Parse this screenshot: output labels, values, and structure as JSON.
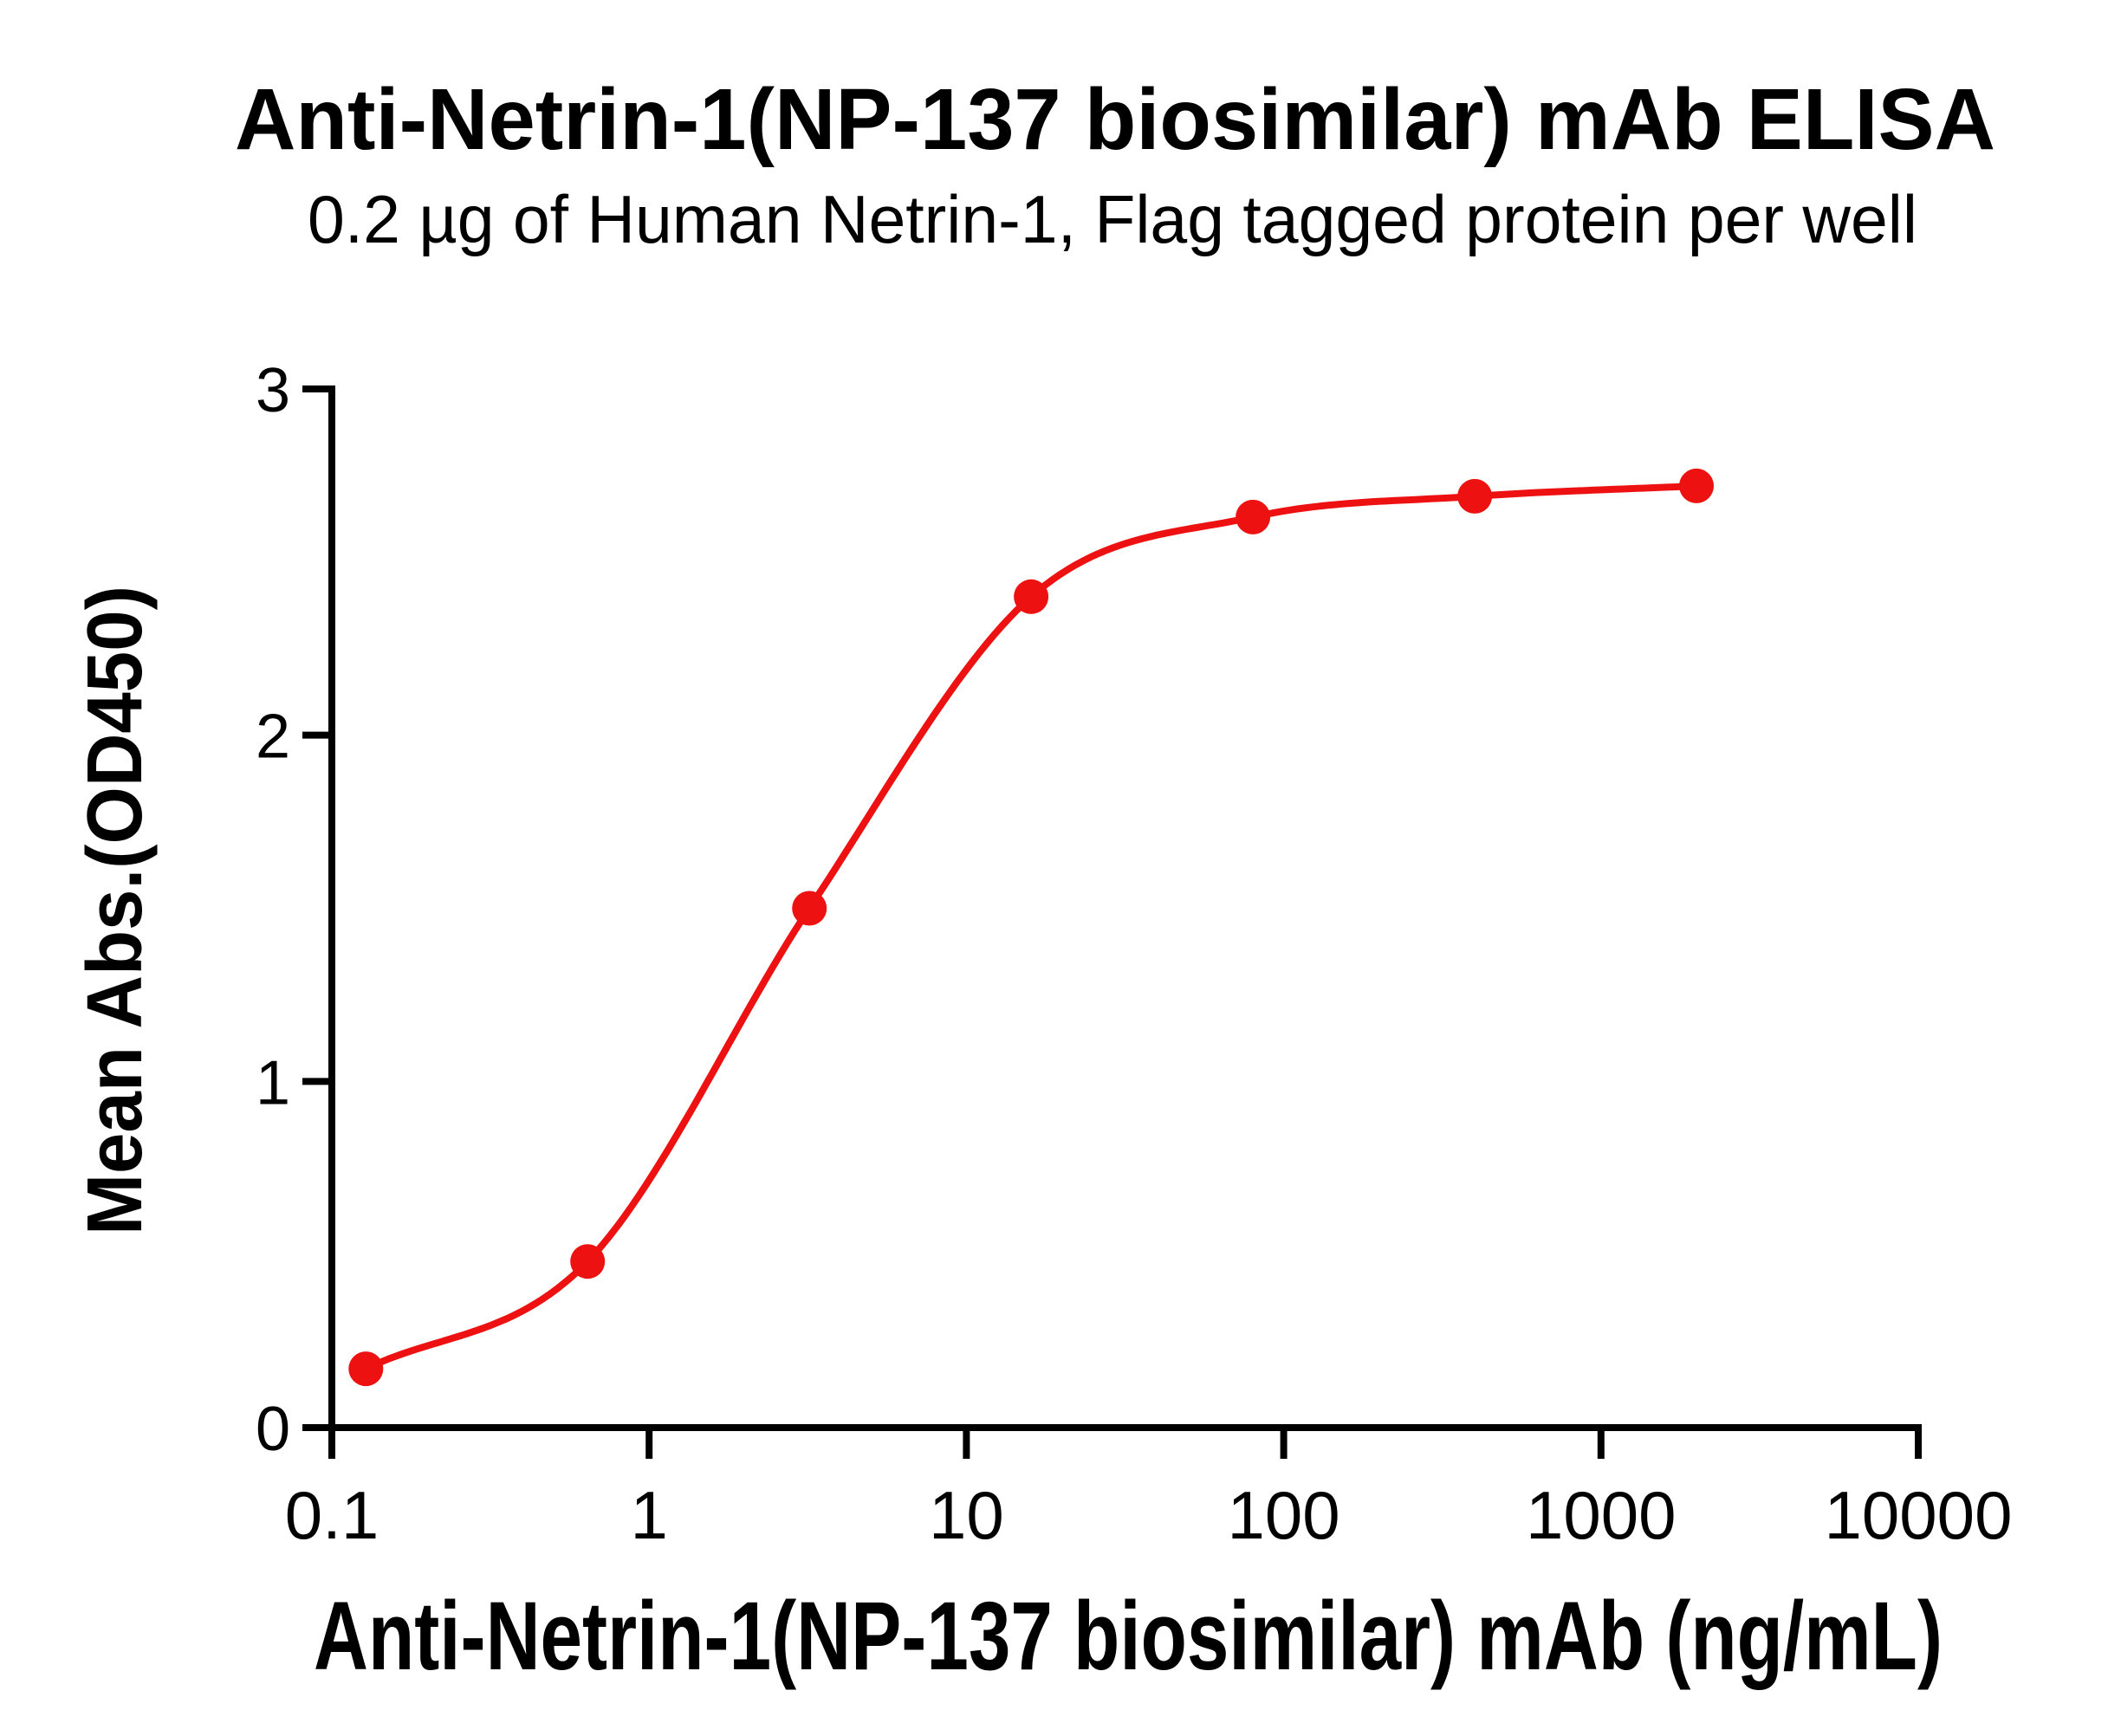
{
  "chart_data": {
    "type": "scatter",
    "title": "Anti-Netrin-1(NP-137 biosimilar) mAb ELISA",
    "subtitle": "0.2 µg of Human Netrin-1, Flag tagged protein per well",
    "xlabel": "Anti-Netrin-1(NP-137 biosimilar) mAb (ng/mL)",
    "ylabel": "Mean Abs.(OD450)",
    "x_scale": "log10",
    "xlim": [
      0.1,
      10000
    ],
    "ylim": [
      0,
      3
    ],
    "x_ticks": [
      "0.1",
      "1",
      "10",
      "100",
      "1000",
      "10000"
    ],
    "y_ticks": [
      "0",
      "1",
      "2",
      "3"
    ],
    "grid": false,
    "legend": "none",
    "axis_color": "#000000",
    "background_color": "#FFFFFF",
    "series": [
      {
        "name": "Anti-Netrin-1(NP-137 biosimilar) mAb",
        "x": [
          0.128,
          0.64,
          3.2,
          16,
          80,
          400,
          2000
        ],
        "y": [
          0.17,
          0.48,
          1.5,
          2.4,
          2.63,
          2.69,
          2.72
        ],
        "marker": "circle",
        "line": "sigmoid-4PL-fit",
        "color": "#EE1111"
      }
    ]
  }
}
